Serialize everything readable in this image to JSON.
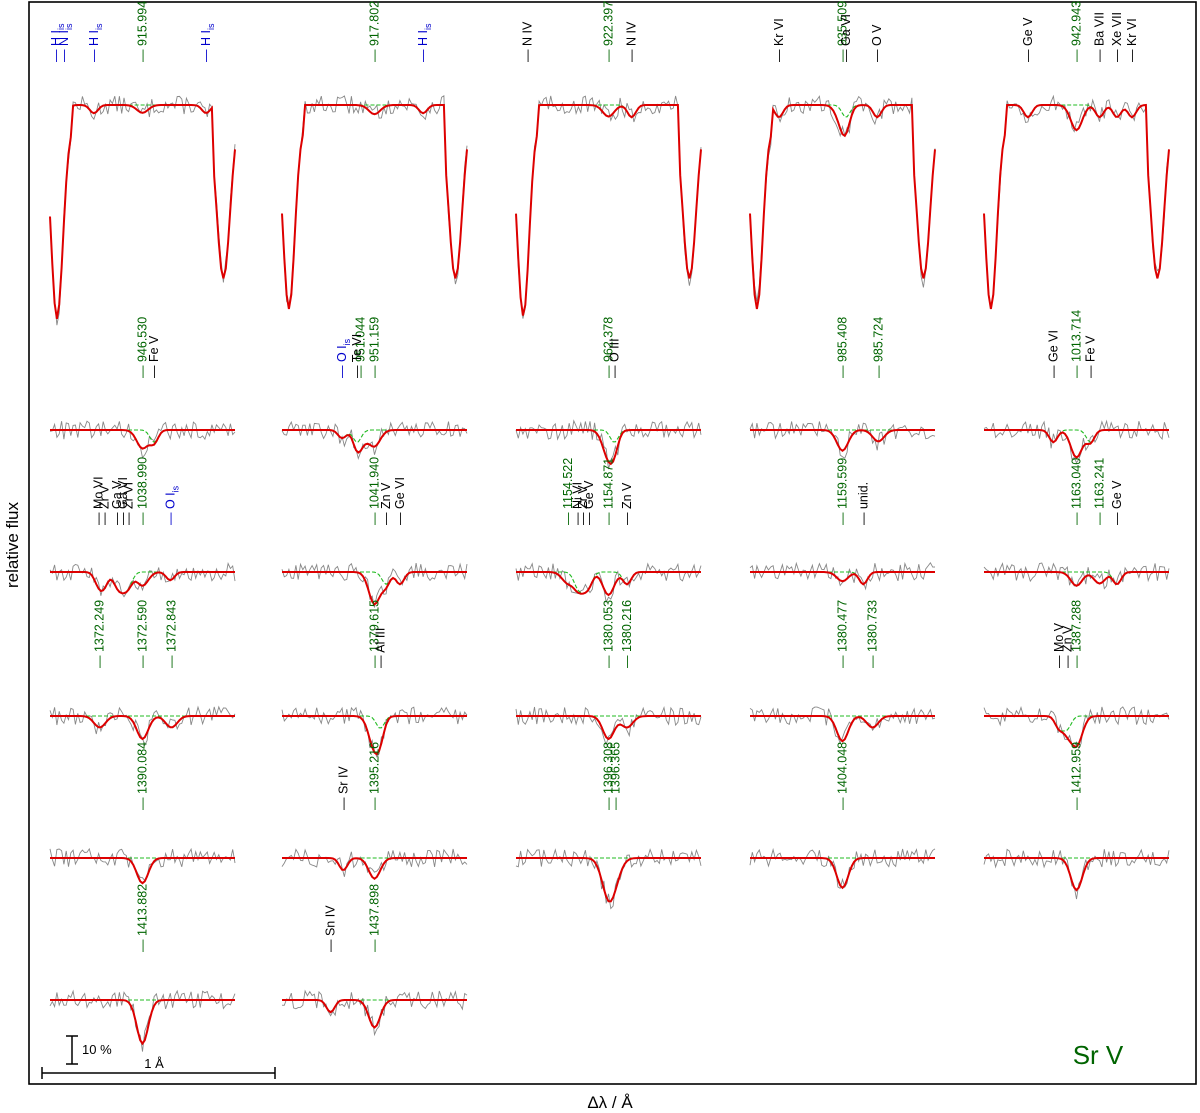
{
  "chart_data": {
    "type": "line",
    "title": "Sr V",
    "xlabel": "Δλ / Å",
    "ylabel": "relative flux",
    "scale_bars": {
      "flux": "10 %",
      "wavelength": "1 Å"
    },
    "colors": {
      "observed": "#888888",
      "model": "#dd0000",
      "model_without_ion": "#22bb22",
      "alternative_model": "#cc00cc",
      "ion_line": "#006400",
      "other_line": "#000000",
      "interstellar_line": "#0000cc"
    },
    "panels": [
      {
        "row": 0,
        "col": 0,
        "ion_lines": [
          {
            "label": "915.994",
            "offset": 0
          }
        ],
        "other_lines": [
          {
            "label": "H I",
            "sub": "is",
            "offset": -0.75,
            "kind": "is"
          },
          {
            "label": "N I",
            "sub": "is",
            "offset": -0.68,
            "kind": "is"
          },
          {
            "label": "H I",
            "sub": "is",
            "offset": -0.42,
            "kind": "is"
          },
          {
            "label": "H I",
            "sub": "is",
            "offset": 0.55,
            "kind": "is"
          }
        ],
        "depth": 0.17,
        "width": 0.07
      },
      {
        "row": 0,
        "col": 1,
        "ion_lines": [
          {
            "label": "917.802",
            "offset": 0
          }
        ],
        "other_lines": [
          {
            "label": "H I",
            "sub": "is",
            "offset": 0.42,
            "kind": "is"
          }
        ],
        "depth": 0.2,
        "width": 0.07
      },
      {
        "row": 0,
        "col": 2,
        "ion_lines": [
          {
            "label": "922.397",
            "offset": 0
          }
        ],
        "other_lines": [
          {
            "label": "N IV",
            "offset": -0.7,
            "kind": "other"
          },
          {
            "label": "N IV",
            "offset": 0.2,
            "kind": "other"
          }
        ],
        "depth": 0.25,
        "width": 0.07
      },
      {
        "row": 0,
        "col": 3,
        "ion_lines": [
          {
            "label": "935.509",
            "offset": 0
          }
        ],
        "other_lines": [
          {
            "label": "Kr VI",
            "offset": -0.55,
            "kind": "other"
          },
          {
            "label": "Ga VI",
            "offset": 0.03,
            "kind": "other"
          },
          {
            "label": "O V",
            "offset": 0.3,
            "kind": "other"
          }
        ],
        "depth": 0.45,
        "width": 0.07
      },
      {
        "row": 0,
        "col": 4,
        "ion_lines": [
          {
            "label": "942.943",
            "offset": 0
          }
        ],
        "other_lines": [
          {
            "label": "Ge V",
            "offset": -0.42,
            "kind": "other"
          },
          {
            "label": "Ba VII",
            "offset": 0.2,
            "kind": "other"
          },
          {
            "label": "Xe VII",
            "offset": 0.35,
            "kind": "other"
          },
          {
            "label": "Kr VI",
            "offset": 0.48,
            "kind": "other"
          }
        ],
        "depth": 0.55,
        "width": 0.07
      },
      {
        "row": 1,
        "col": 0,
        "ion_lines": [
          {
            "label": "946.530",
            "offset": 0
          }
        ],
        "other_lines": [
          {
            "label": "Fe V",
            "offset": 0.1,
            "kind": "other"
          }
        ],
        "depth": 0.4,
        "width": 0.07
      },
      {
        "row": 1,
        "col": 1,
        "ion_lines": [
          {
            "label": "951.044",
            "offset": -0.12
          },
          {
            "label": "951.159",
            "offset": 0
          }
        ],
        "other_lines": [
          {
            "label": "O I",
            "sub": "is",
            "offset": -0.28,
            "kind": "is"
          },
          {
            "label": "Te VI",
            "offset": -0.15,
            "kind": "other"
          }
        ],
        "depth": 0.35,
        "width": 0.07
      },
      {
        "row": 1,
        "col": 2,
        "ion_lines": [
          {
            "label": "962.378",
            "offset": 0
          }
        ],
        "other_lines": [
          {
            "label": "O III",
            "offset": 0.05,
            "kind": "other"
          }
        ],
        "depth": 0.6,
        "width": 0.07
      },
      {
        "row": 1,
        "col": 3,
        "ion_lines": [
          {
            "label": "985.408",
            "offset": 0
          },
          {
            "label": "985.724",
            "offset": 0.31
          }
        ],
        "other_lines": [],
        "depth": 0.45,
        "width": 0.07
      },
      {
        "row": 1,
        "col": 4,
        "ion_lines": [
          {
            "label": "1013.714",
            "offset": 0
          }
        ],
        "other_lines": [
          {
            "label": "Ge VI",
            "offset": -0.2,
            "kind": "other"
          },
          {
            "label": "Fe V",
            "offset": 0.12,
            "kind": "other"
          }
        ],
        "depth": 0.6,
        "width": 0.07
      },
      {
        "row": 2,
        "col": 0,
        "ion_lines": [
          {
            "label": "1038.990",
            "offset": 0
          }
        ],
        "other_lines": [
          {
            "label": "Mo VI",
            "offset": -0.38,
            "kind": "other"
          },
          {
            "label": "Zr V",
            "offset": -0.33,
            "kind": "other"
          },
          {
            "label": "Ga V",
            "offset": -0.22,
            "kind": "other"
          },
          {
            "label": "Ga VI",
            "offset": -0.17,
            "kind": "other"
          },
          {
            "label": "Zr VI",
            "offset": -0.12,
            "kind": "other"
          },
          {
            "label": "O I",
            "sub": "is",
            "offset": 0.24,
            "kind": "is"
          }
        ],
        "depth": 0.3,
        "width": 0.07
      },
      {
        "row": 2,
        "col": 1,
        "ion_lines": [
          {
            "label": "1041.940",
            "offset": 0
          }
        ],
        "other_lines": [
          {
            "label": "Zn V",
            "offset": 0.1,
            "kind": "other"
          },
          {
            "label": "Ge VI",
            "offset": 0.22,
            "kind": "other"
          }
        ],
        "depth": 0.7,
        "width": 0.07
      },
      {
        "row": 2,
        "col": 2,
        "ion_lines": [
          {
            "label": "1154.522",
            "offset": -0.35
          },
          {
            "label": "1154.871",
            "offset": 0
          }
        ],
        "other_lines": [
          {
            "label": "Ni VI",
            "offset": -0.27,
            "kind": "other"
          },
          {
            "label": "Zr V",
            "offset": -0.22,
            "kind": "other"
          },
          {
            "label": "Ge V",
            "offset": -0.17,
            "kind": "other"
          },
          {
            "label": "Zn V",
            "offset": 0.16,
            "kind": "other"
          }
        ],
        "depth": 0.5,
        "width": 0.07
      },
      {
        "row": 2,
        "col": 3,
        "ion_lines": [
          {
            "label": "1159.599",
            "offset": 0
          }
        ],
        "other_lines": [
          {
            "label": "unid.",
            "offset": 0.18,
            "kind": "other"
          }
        ],
        "depth": 0.2,
        "width": 0.07
      },
      {
        "row": 2,
        "col": 4,
        "ion_lines": [
          {
            "label": "1163.040",
            "offset": 0
          },
          {
            "label": "1163.241",
            "offset": 0.2
          }
        ],
        "other_lines": [
          {
            "label": "Ge V",
            "offset": 0.35,
            "kind": "other"
          }
        ],
        "depth": 0.3,
        "width": 0.07
      },
      {
        "row": 3,
        "col": 0,
        "ion_lines": [
          {
            "label": "1372.249",
            "offset": -0.37
          },
          {
            "label": "1372.590",
            "offset": 0
          },
          {
            "label": "1372.843",
            "offset": 0.25
          }
        ],
        "other_lines": [],
        "depth": 0.5,
        "width": 0.07
      },
      {
        "row": 3,
        "col": 1,
        "ion_lines": [
          {
            "label": "1379.615",
            "offset": 0
          }
        ],
        "other_lines": [
          {
            "label": "Al III",
            "offset": 0.05,
            "kind": "other"
          }
        ],
        "depth": 0.7,
        "width": 0.07
      },
      {
        "row": 3,
        "col": 2,
        "ion_lines": [
          {
            "label": "1380.053",
            "offset": 0
          },
          {
            "label": "1380.216",
            "offset": 0.16
          }
        ],
        "other_lines": [],
        "depth": 0.5,
        "width": 0.07
      },
      {
        "row": 3,
        "col": 3,
        "ion_lines": [
          {
            "label": "1380.477",
            "offset": 0
          },
          {
            "label": "1380.733",
            "offset": 0.26
          }
        ],
        "other_lines": [],
        "depth": 0.55,
        "width": 0.07
      },
      {
        "row": 3,
        "col": 4,
        "ion_lines": [
          {
            "label": "1387.288",
            "offset": 0
          }
        ],
        "other_lines": [
          {
            "label": "Mo V",
            "offset": -0.15,
            "kind": "other"
          },
          {
            "label": "Zn V",
            "offset": -0.08,
            "kind": "other"
          }
        ],
        "depth": 0.65,
        "width": 0.07
      },
      {
        "row": 4,
        "col": 0,
        "ion_lines": [
          {
            "label": "1390.084",
            "offset": 0
          }
        ],
        "other_lines": [],
        "depth": 0.55,
        "width": 0.07
      },
      {
        "row": 4,
        "col": 1,
        "ion_lines": [
          {
            "label": "1395.216",
            "offset": 0
          }
        ],
        "other_lines": [
          {
            "label": "Sr IV",
            "offset": -0.27,
            "kind": "other"
          }
        ],
        "depth": 0.45,
        "width": 0.07
      },
      {
        "row": 4,
        "col": 2,
        "ion_lines": [
          {
            "label": "1396.308",
            "offset": 0
          },
          {
            "label": "1396.365",
            "offset": 0.06
          }
        ],
        "other_lines": [],
        "depth": 0.8,
        "width": 0.08
      },
      {
        "row": 4,
        "col": 3,
        "ion_lines": [
          {
            "label": "1404.048",
            "offset": 0
          }
        ],
        "other_lines": [],
        "depth": 0.65,
        "width": 0.07
      },
      {
        "row": 4,
        "col": 4,
        "ion_lines": [
          {
            "label": "1412.959",
            "offset": 0
          }
        ],
        "other_lines": [],
        "depth": 0.7,
        "width": 0.07
      },
      {
        "row": 5,
        "col": 0,
        "ion_lines": [
          {
            "label": "1413.882",
            "offset": 0
          }
        ],
        "other_lines": [],
        "depth": 0.95,
        "width": 0.07
      },
      {
        "row": 5,
        "col": 1,
        "ion_lines": [
          {
            "label": "1437.898",
            "offset": 0
          }
        ],
        "other_lines": [
          {
            "label": "Sn IV",
            "offset": -0.38,
            "kind": "other"
          }
        ],
        "depth": 0.6,
        "width": 0.07
      }
    ]
  }
}
